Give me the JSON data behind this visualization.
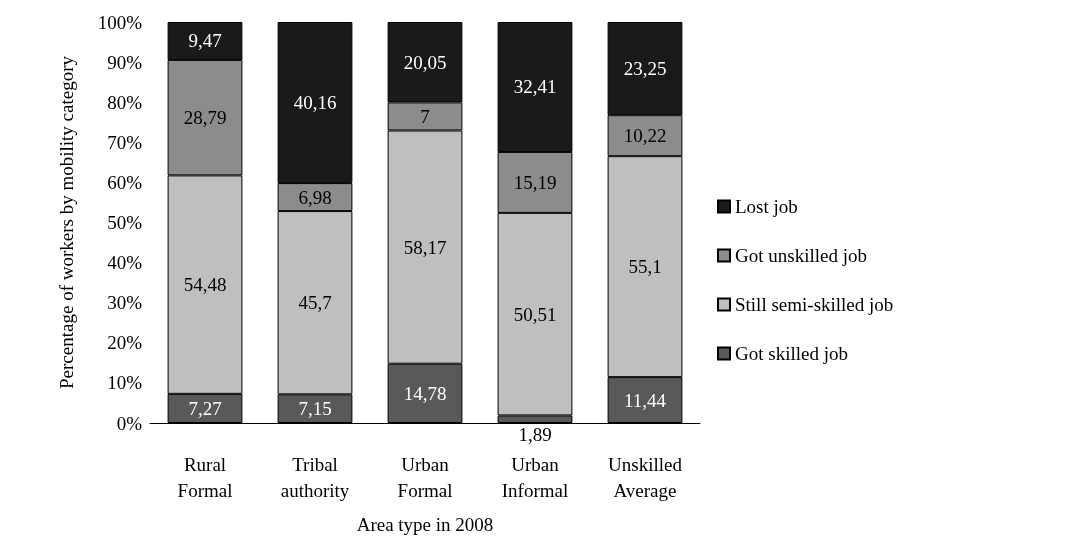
{
  "chart_data": {
    "type": "bar",
    "stacked": true,
    "xlabel": "Area type in 2008",
    "ylabel": "Percentage of workers by mobility category",
    "categories": [
      "Rural Formal",
      "Tribal authority",
      "Urban Formal",
      "Urban Informal",
      "Unskilled Average"
    ],
    "series": [
      {
        "name": "Got skilled job",
        "color": "#595959",
        "values": [
          7.27,
          7.15,
          14.78,
          1.89,
          11.44
        ],
        "value_labels": [
          "7,27",
          "7,15",
          "14,78",
          "1,89",
          "11,44"
        ]
      },
      {
        "name": "Still semi-skilled job",
        "color": "#bfbfbf",
        "values": [
          54.48,
          45.7,
          58.17,
          50.51,
          55.1
        ],
        "value_labels": [
          "54,48",
          "45,7",
          "58,17",
          "50,51",
          "55,1"
        ]
      },
      {
        "name": "Got unskilled job",
        "color": "#8c8c8c",
        "values": [
          28.79,
          6.98,
          7,
          15.19,
          10.22
        ],
        "value_labels": [
          "28,79",
          "6,98",
          "7",
          "15,19",
          "10,22"
        ]
      },
      {
        "name": "Lost job",
        "color": "#1a1a1a",
        "values": [
          9.47,
          40.16,
          20.05,
          32.41,
          23.25
        ],
        "value_labels": [
          "9,47",
          "40,16",
          "20,05",
          "32,41",
          "23,25"
        ]
      }
    ],
    "ylim": [
      0,
      100
    ],
    "yticks": [
      {
        "value": 0,
        "label": "0%"
      },
      {
        "value": 10,
        "label": "10%"
      },
      {
        "value": 20,
        "label": "20%"
      },
      {
        "value": 30,
        "label": "30%"
      },
      {
        "value": 40,
        "label": "40%"
      },
      {
        "value": 50,
        "label": "50%"
      },
      {
        "value": 60,
        "label": "60%"
      },
      {
        "value": 70,
        "label": "70%"
      },
      {
        "value": 80,
        "label": "80%"
      },
      {
        "value": 90,
        "label": "90%"
      },
      {
        "value": 100,
        "label": "100%"
      }
    ],
    "grid": false,
    "legend": "right"
  }
}
